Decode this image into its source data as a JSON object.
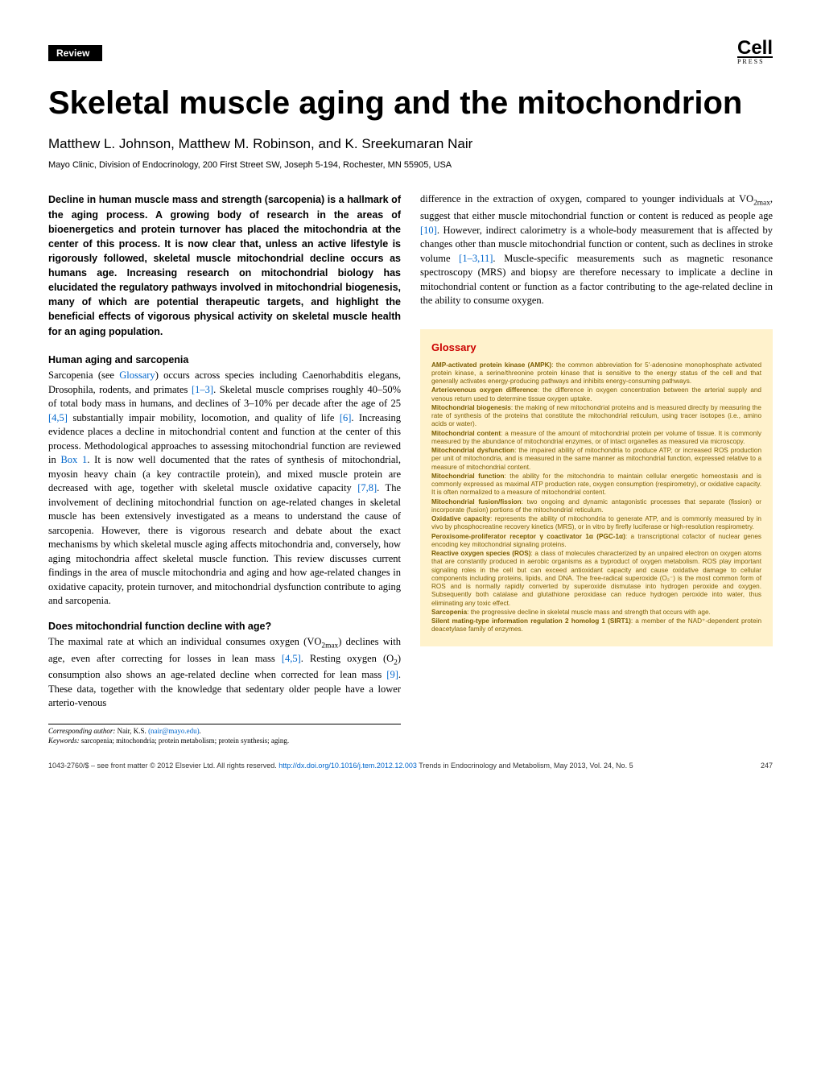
{
  "header": {
    "badge": "Review",
    "logo": "Cell",
    "logo_sub": "PRESS"
  },
  "title": "Skeletal muscle aging and the mitochondrion",
  "authors": "Matthew L. Johnson, Matthew M. Robinson, and K. Sreekumaran Nair",
  "affiliation": "Mayo Clinic, Division of Endocrinology, 200 First Street SW, Joseph 5-194, Rochester, MN 55905, USA",
  "abstract": "Decline in human muscle mass and strength (sarcopenia) is a hallmark of the aging process. A growing body of research in the areas of bioenergetics and protein turnover has placed the mitochondria at the center of this process. It is now clear that, unless an active lifestyle is rigorously followed, skeletal muscle mitochondrial decline occurs as humans age. Increasing research on mitochondrial biology has elucidated the regulatory pathways involved in mitochondrial biogenesis, many of which are potential therapeutic targets, and highlight the beneficial effects of vigorous physical activity on skeletal muscle health for an aging population.",
  "sections": {
    "s1_heading": "Human aging and sarcopenia",
    "s1_p1a": "Sarcopenia (see ",
    "s1_p1_link1": "Glossary",
    "s1_p1b": ") occurs across species including Caenorhabditis elegans, Drosophila, rodents, and primates ",
    "s1_p1_link2": "[1–3]",
    "s1_p1c": ". Skeletal muscle comprises roughly 40–50% of total body mass in humans, and declines of 3–10% per decade after the age of 25 ",
    "s1_p1_link3": "[4,5]",
    "s1_p1d": " substantially impair mobility, locomotion, and quality of life ",
    "s1_p1_link4": "[6]",
    "s1_p1e": ". Increasing evidence places a decline in mitochondrial content and function at the center of this process. Methodological approaches to assessing mitochondrial function are reviewed in ",
    "s1_p1_link5": "Box 1",
    "s1_p1f": ". It is now well documented that the rates of synthesis of mitochondrial, myosin heavy chain (a key contractile protein), and mixed muscle protein are decreased with age, together with skeletal muscle oxidative capacity ",
    "s1_p1_link6": "[7,8]",
    "s1_p1g": ". The involvement of declining mitochondrial function on age-related changes in skeletal muscle has been extensively investigated as a means to understand the cause of sarcopenia. However, there is vigorous research and debate about the exact mechanisms by which skeletal muscle aging affects mitochondria and, conversely, how aging mitochondria affect skeletal muscle function. This review discusses current findings in the area of muscle mitochondria and aging and how age-related changes in oxidative capacity, protein turnover, and mitochondrial dysfunction contribute to aging and sarcopenia.",
    "s2_heading": "Does mitochondrial function decline with age?",
    "s2_p1a": "The maximal rate at which an individual consumes oxygen (VO",
    "s2_sub1": "2max",
    "s2_p1b": ") declines with age, even after correcting for losses in lean mass ",
    "s2_p1_link1": "[4,5]",
    "s2_p1c": ". Resting oxygen (O",
    "s2_sub2": "2",
    "s2_p1d": ") consumption also shows an age-related decline when corrected for lean mass ",
    "s2_p1_link2": "[9]",
    "s2_p1e": ". These data, together with the knowledge that sedentary older people have a lower arterio-venous",
    "col2_p1a": "difference in the extraction of oxygen, compared to younger individuals at VO",
    "col2_sub1": "2max",
    "col2_p1b": ", suggest that either muscle mitochondrial function or content is reduced as people age ",
    "col2_link1": "[10]",
    "col2_p1c": ". However, indirect calorimetry is a whole-body measurement that is affected by changes other than muscle mitochondrial function or content, such as declines in stroke volume ",
    "col2_link2": "[1–3,11]",
    "col2_p1d": ". Muscle-specific measurements such as magnetic resonance spectroscopy (MRS) and biopsy are therefore necessary to implicate a decline in mitochondrial content or function as a factor contributing to the age-related decline in the ability to consume oxygen."
  },
  "glossary": {
    "title": "Glossary",
    "items": [
      {
        "term": "AMP-activated protein kinase (AMPK)",
        "def": ": the common abbreviation for 5'-adenosine monophosphate activated protein kinase, a serine/threonine protein kinase that is sensitive to the energy status of the cell and that generally activates energy-producing pathways and inhibits energy-consuming pathways."
      },
      {
        "term": "Arteriovenous oxygen difference",
        "def": ": the difference in oxygen concentration between the arterial supply and venous return used to determine tissue oxygen uptake."
      },
      {
        "term": "Mitochondrial biogenesis",
        "def": ": the making of new mitochondrial proteins and is measured directly by measuring the rate of synthesis of the proteins that constitute the mitochondrial reticulum, using tracer isotopes (i.e., amino acids or water)."
      },
      {
        "term": "Mitochondrial content",
        "def": ": a measure of the amount of mitochondrial protein per volume of tissue. It is commonly measured by the abundance of mitochondrial enzymes, or of intact organelles as measured via microscopy."
      },
      {
        "term": "Mitochondrial dysfunction",
        "def": ": the impaired ability of mitochondria to produce ATP, or increased ROS production per unit of mitochondria, and is measured in the same manner as mitochondrial function, expressed relative to a measure of mitochondrial content."
      },
      {
        "term": "Mitochondrial function",
        "def": ": the ability for the mitochondria to maintain cellular energetic homeostasis and is commonly expressed as maximal ATP production rate, oxygen consumption (respirometry), or oxidative capacity. It is often normalized to a measure of mitochondrial content."
      },
      {
        "term": "Mitochondrial fusion/fission",
        "def": ": two ongoing and dynamic antagonistic processes that separate (fission) or incorporate (fusion) portions of the mitochondrial reticulum."
      },
      {
        "term": "Oxidative capacity",
        "def": ": represents the ability of mitochondria to generate ATP, and is commonly measured by in vivo by phosphocreatine recovery kinetics (MRS), or in vitro by firefly luciferase or high-resolution respirometry."
      },
      {
        "term": "Peroxisome-proliferator receptor γ coactivator 1α (PGC-1α)",
        "def": ": a transcriptional cofactor of nuclear genes encoding key mitochondrial signaling proteins."
      },
      {
        "term": "Reactive oxygen species (ROS)",
        "def": ": a class of molecules characterized by an unpaired electron on oxygen atoms that are constantly produced in aerobic organisms as a byproduct of oxygen metabolism. ROS play important signaling roles in the cell but can exceed antioxidant capacity and cause oxidative damage to cellular components including proteins, lipids, and DNA. The free-radical superoxide (O₂⁻) is the most common form of ROS and is normally rapidly converted by superoxide dismutase into hydrogen peroxide and oxygen. Subsequently both catalase and glutathione peroxidase can reduce hydrogen peroxide into water, thus eliminating any toxic effect."
      },
      {
        "term": "Sarcopenia",
        "def": ": the progressive decline in skeletal muscle mass and strength that occurs with age."
      },
      {
        "term": "Silent mating-type information regulation 2 homolog 1 (SIRT1)",
        "def": ": a member of the NAD⁺-dependent protein deacetylase family of enzymes."
      }
    ]
  },
  "footnotes": {
    "corr_label": "Corresponding author: ",
    "corr_name": "Nair, K.S. ",
    "corr_email": "(nair@mayo.edu)",
    "keywords_label": "Keywords: ",
    "keywords": "sarcopenia; mitochondria; protein metabolism; protein synthesis; aging."
  },
  "footer": {
    "left": "1043-2760/$ – see front matter © 2012 Elsevier Ltd. All rights reserved. ",
    "doi": "http://dx.doi.org/10.1016/j.tem.2012.12.003",
    "journal": " Trends in Endocrinology and Metabolism, May 2013, Vol. 24, No. 5",
    "page": "247"
  }
}
